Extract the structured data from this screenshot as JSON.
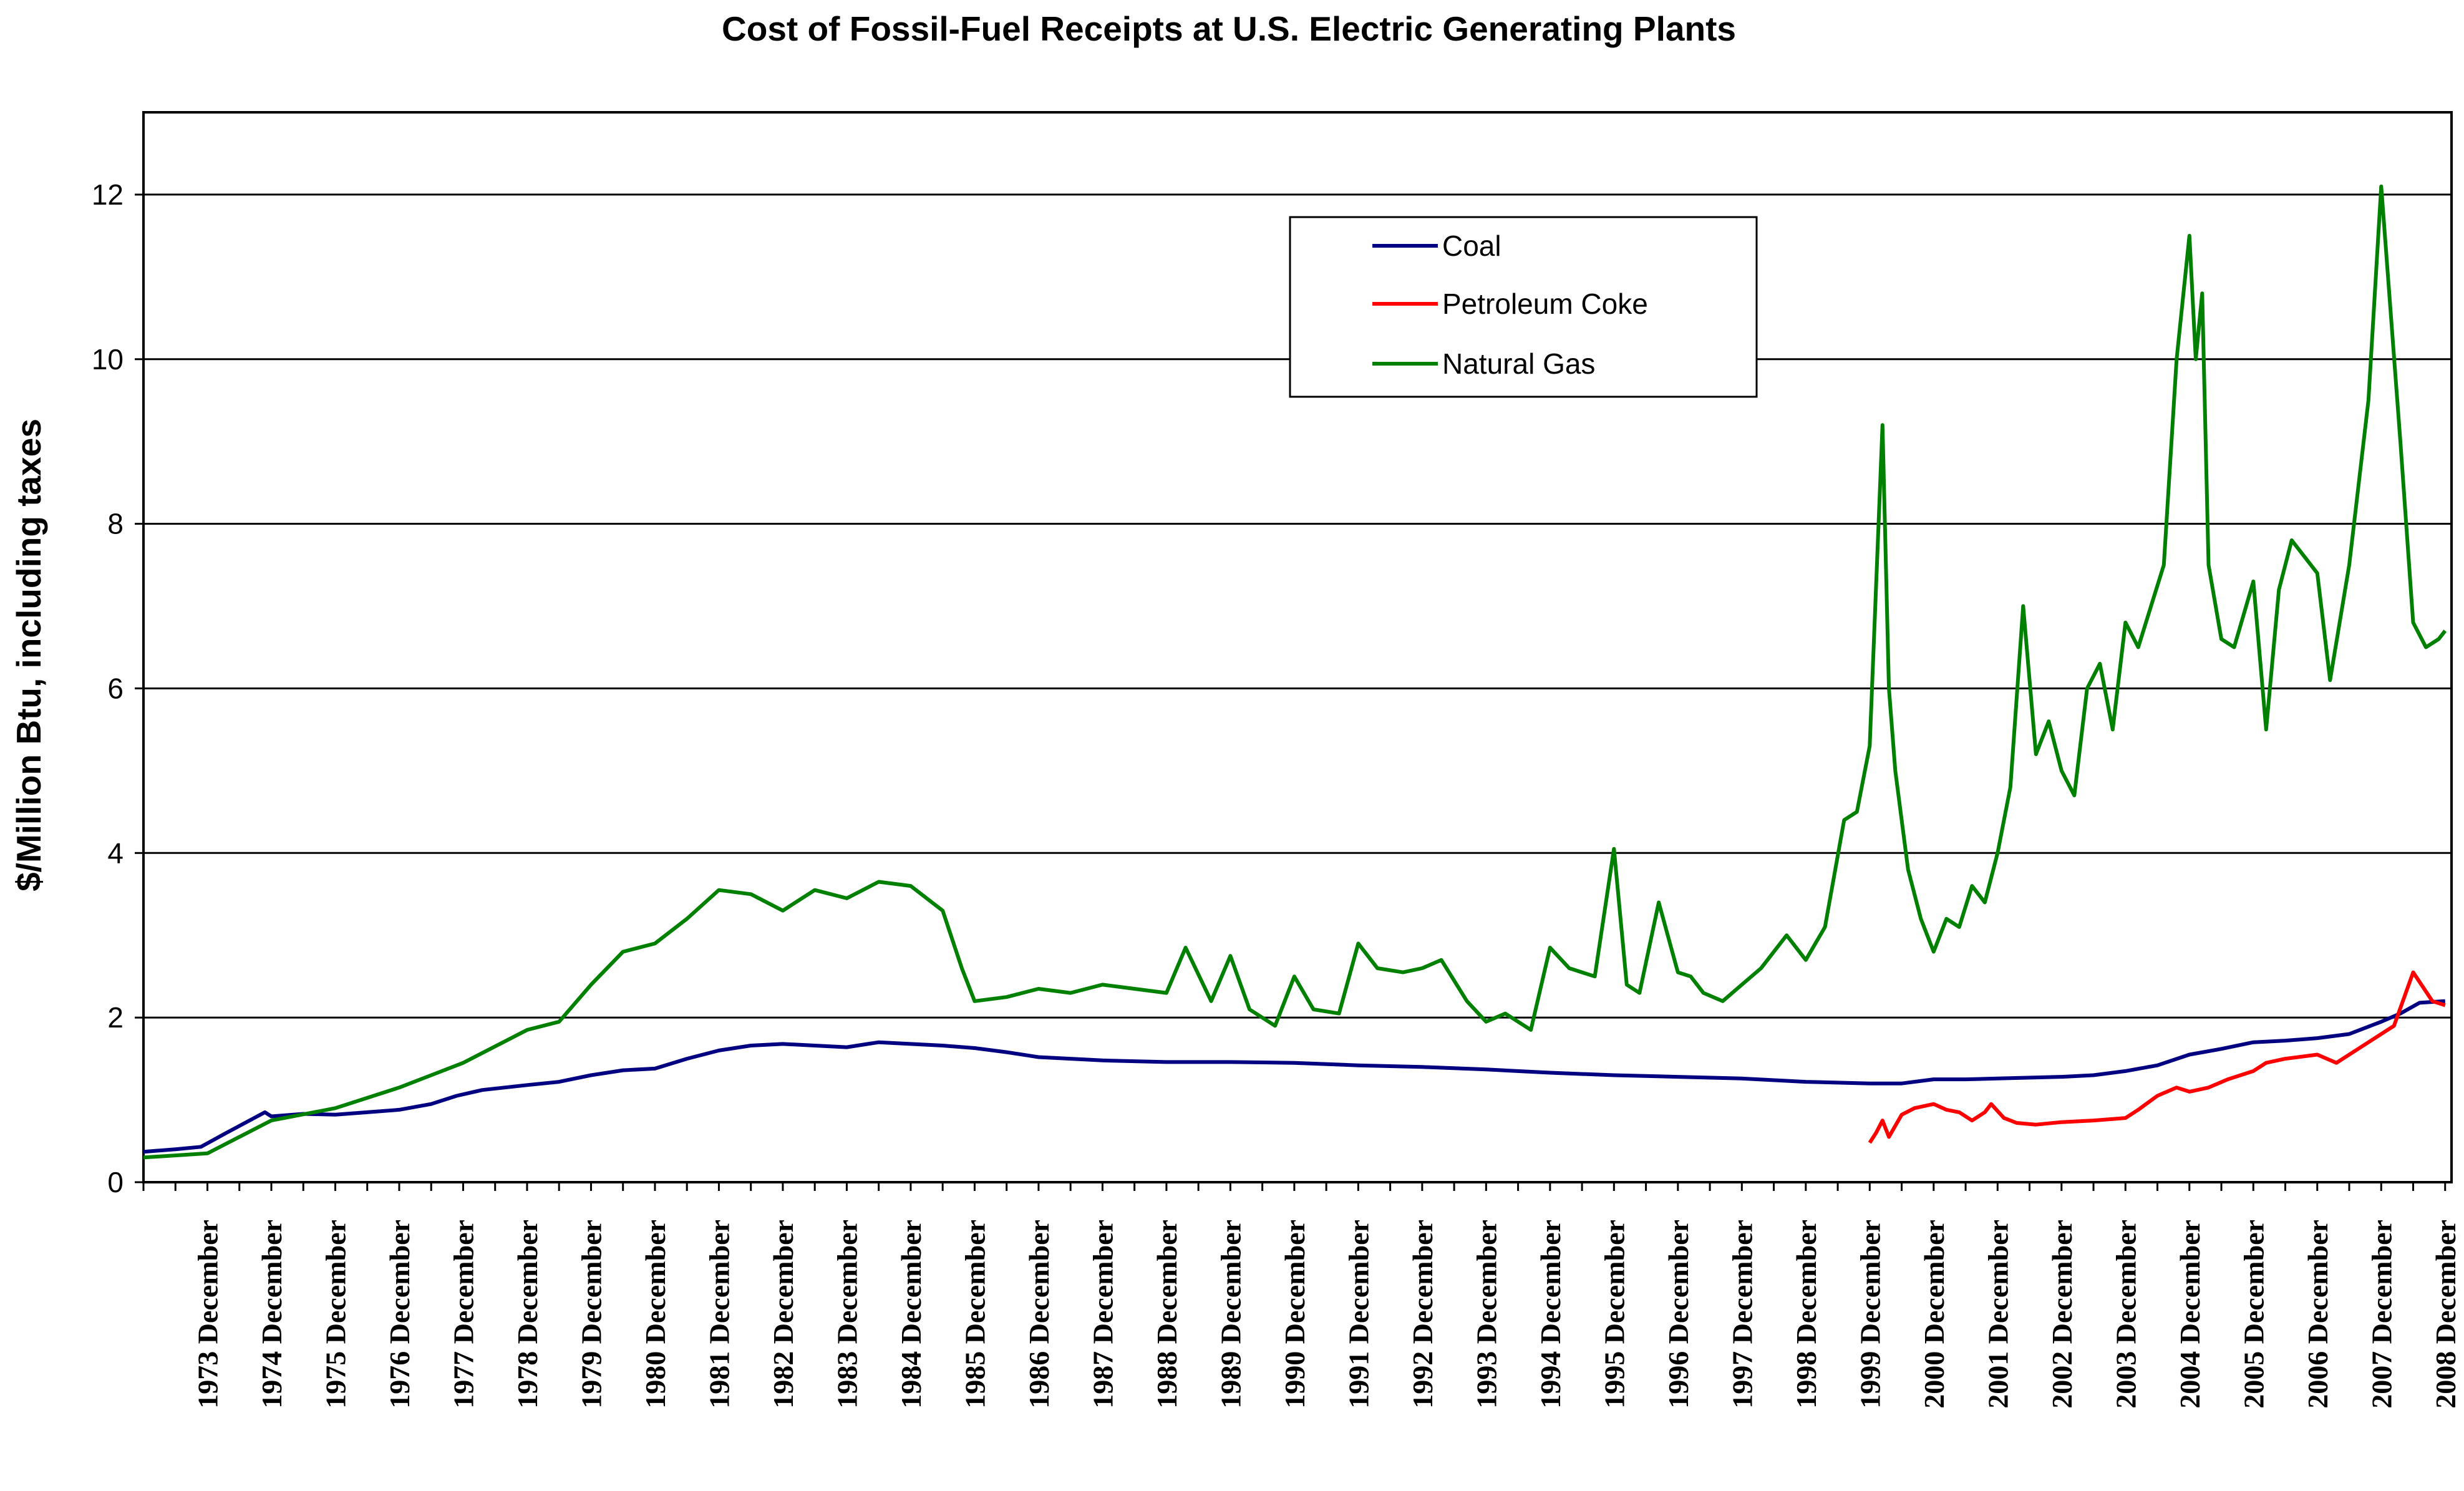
{
  "chart_data": {
    "type": "line",
    "title": "Cost of Fossil-Fuel Receipts at U.S. Electric Generating Plants",
    "xlabel": "",
    "ylabel": "$/Million Btu, including taxes",
    "xlim": [
      1973.0,
      2009.1
    ],
    "ylim": [
      0,
      13
    ],
    "yticks": [
      0,
      2,
      4,
      6,
      8,
      10,
      12
    ],
    "grid": true,
    "legend_position": "top-center",
    "categories": [
      "1973 December",
      "1974 December",
      "1975 December",
      "1976 December",
      "1977 December",
      "1978 December",
      "1979 December",
      "1980 December",
      "1981 December",
      "1982 December",
      "1983 December",
      "1984 December",
      "1985 December",
      "1986 December",
      "1987 December",
      "1988 December",
      "1989 December",
      "1990 December",
      "1991 December",
      "1992 December",
      "1993 December",
      "1994 December",
      "1995 December",
      "1996 December",
      "1997 December",
      "1998 December",
      "1999 December",
      "2000 December",
      "2001 December",
      "2002 December",
      "2003 December",
      "2004 December",
      "2005 December",
      "2006 December",
      "2007 December",
      "2008 December"
    ],
    "series": [
      {
        "name": "Coal",
        "color": "#000080",
        "x": [
          1973.0,
          1973.5,
          1973.9,
          1974.3,
          1974.9,
          1975.0,
          1975.5,
          1976.0,
          1976.5,
          1977.0,
          1977.5,
          1977.9,
          1978.3,
          1979.0,
          1979.5,
          1980.0,
          1980.5,
          1981.0,
          1981.5,
          1982.0,
          1982.5,
          1983.0,
          1983.5,
          1984.0,
          1984.5,
          1985.0,
          1985.5,
          1986.0,
          1986.5,
          1987.0,
          1988.0,
          1989.0,
          1990.0,
          1991.0,
          1992.0,
          1993.0,
          1994.0,
          1995.0,
          1996.0,
          1997.0,
          1998.0,
          1999.0,
          2000.0,
          2000.5,
          2001.0,
          2001.5,
          2002.0,
          2003.0,
          2003.5,
          2004.0,
          2004.5,
          2005.0,
          2005.5,
          2006.0,
          2006.5,
          2007.0,
          2007.5,
          2008.0,
          2008.3,
          2008.6,
          2009.0
        ],
        "values": [
          0.37,
          0.4,
          0.43,
          0.6,
          0.85,
          0.8,
          0.83,
          0.82,
          0.85,
          0.88,
          0.95,
          1.05,
          1.12,
          1.18,
          1.22,
          1.3,
          1.36,
          1.38,
          1.5,
          1.6,
          1.66,
          1.68,
          1.66,
          1.64,
          1.7,
          1.68,
          1.66,
          1.63,
          1.58,
          1.52,
          1.48,
          1.46,
          1.46,
          1.45,
          1.42,
          1.4,
          1.37,
          1.33,
          1.3,
          1.28,
          1.26,
          1.22,
          1.2,
          1.2,
          1.25,
          1.25,
          1.26,
          1.28,
          1.3,
          1.35,
          1.42,
          1.55,
          1.62,
          1.7,
          1.72,
          1.75,
          1.8,
          1.95,
          2.05,
          2.18,
          2.2
        ]
      },
      {
        "name": "Petroleum Coke",
        "color": "#ff0000",
        "x": [
          2000.0,
          2000.1,
          2000.2,
          2000.3,
          2000.5,
          2000.7,
          2001.0,
          2001.2,
          2001.4,
          2001.6,
          2001.8,
          2001.9,
          2002.1,
          2002.3,
          2002.6,
          2003.0,
          2003.5,
          2004.0,
          2004.2,
          2004.5,
          2004.8,
          2005.0,
          2005.3,
          2005.6,
          2006.0,
          2006.2,
          2006.5,
          2007.0,
          2007.3,
          2007.6,
          2007.9,
          2008.0,
          2008.2,
          2008.5,
          2008.8,
          2009.0
        ],
        "values": [
          0.48,
          0.6,
          0.75,
          0.55,
          0.82,
          0.9,
          0.95,
          0.88,
          0.85,
          0.75,
          0.85,
          0.95,
          0.78,
          0.72,
          0.7,
          0.73,
          0.75,
          0.78,
          0.88,
          1.05,
          1.15,
          1.1,
          1.15,
          1.25,
          1.35,
          1.45,
          1.5,
          1.55,
          1.45,
          1.6,
          1.75,
          1.8,
          1.9,
          2.55,
          2.2,
          2.15
        ]
      },
      {
        "name": "Natural Gas",
        "color": "#008000",
        "x": [
          1973.0,
          1974.0,
          1974.5,
          1975.0,
          1976.0,
          1977.0,
          1977.5,
          1978.0,
          1978.5,
          1979.0,
          1979.5,
          1980.0,
          1980.5,
          1981.0,
          1981.5,
          1982.0,
          1982.5,
          1983.0,
          1983.5,
          1984.0,
          1984.5,
          1985.0,
          1985.5,
          1985.8,
          1986.0,
          1986.5,
          1987.0,
          1987.5,
          1988.0,
          1988.5,
          1989.0,
          1989.3,
          1989.7,
          1990.0,
          1990.3,
          1990.7,
          1991.0,
          1991.3,
          1991.7,
          1992.0,
          1992.3,
          1992.7,
          1993.0,
          1993.3,
          1993.7,
          1994.0,
          1994.3,
          1994.7,
          1995.0,
          1995.3,
          1995.7,
          1996.0,
          1996.2,
          1996.4,
          1996.7,
          1997.0,
          1997.2,
          1997.4,
          1997.7,
          1998.0,
          1998.3,
          1998.7,
          1999.0,
          1999.3,
          1999.6,
          1999.8,
          2000.0,
          2000.2,
          2000.3,
          2000.4,
          2000.6,
          2000.8,
          2001.0,
          2001.2,
          2001.4,
          2001.6,
          2001.8,
          2002.0,
          2002.2,
          2002.4,
          2002.6,
          2002.8,
          2003.0,
          2003.2,
          2003.4,
          2003.6,
          2003.8,
          2004.0,
          2004.2,
          2004.4,
          2004.6,
          2004.8,
          2005.0,
          2005.1,
          2005.2,
          2005.3,
          2005.5,
          2005.7,
          2006.0,
          2006.2,
          2006.4,
          2006.6,
          2006.8,
          2007.0,
          2007.2,
          2007.5,
          2007.8,
          2008.0,
          2008.3,
          2008.5,
          2008.7,
          2008.9,
          2009.0
        ],
        "values": [
          0.3,
          0.35,
          0.55,
          0.75,
          0.9,
          1.15,
          1.3,
          1.45,
          1.65,
          1.85,
          1.95,
          2.4,
          2.8,
          2.9,
          3.2,
          3.55,
          3.5,
          3.3,
          3.55,
          3.45,
          3.65,
          3.6,
          3.3,
          2.6,
          2.2,
          2.25,
          2.35,
          2.3,
          2.4,
          2.35,
          2.3,
          2.85,
          2.2,
          2.75,
          2.1,
          1.9,
          2.5,
          2.1,
          2.05,
          2.9,
          2.6,
          2.55,
          2.6,
          2.7,
          2.2,
          1.95,
          2.05,
          1.85,
          2.85,
          2.6,
          2.5,
          4.05,
          2.4,
          2.3,
          3.4,
          2.55,
          2.5,
          2.3,
          2.2,
          2.4,
          2.6,
          3.0,
          2.7,
          3.1,
          4.4,
          4.5,
          5.3,
          9.2,
          6.0,
          5.0,
          3.8,
          3.2,
          2.8,
          3.2,
          3.1,
          3.6,
          3.4,
          4.0,
          4.8,
          7.0,
          5.2,
          5.6,
          5.0,
          4.7,
          6.0,
          6.3,
          5.5,
          6.8,
          6.5,
          7.0,
          7.5,
          10.0,
          11.5,
          10.0,
          10.8,
          7.5,
          6.6,
          6.5,
          7.3,
          5.5,
          7.2,
          7.8,
          7.6,
          7.4,
          6.1,
          7.5,
          9.5,
          12.1,
          9.0,
          6.8,
          6.5,
          6.6,
          6.7
        ]
      }
    ]
  }
}
